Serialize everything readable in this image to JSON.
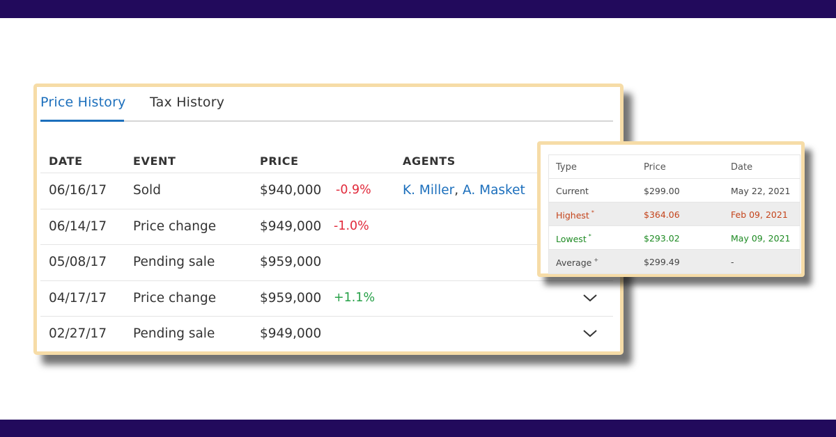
{
  "price_history": {
    "tabs": [
      {
        "label": "Price History",
        "active": true
      },
      {
        "label": "Tax History",
        "active": false
      }
    ],
    "columns": [
      "DATE",
      "EVENT",
      "PRICE",
      "AGENTS"
    ],
    "rows": [
      {
        "date": "06/16/17",
        "event": "Sold",
        "price": "$940,000",
        "change": "-0.9%",
        "agents": [
          "K. Miller",
          "A. Masket"
        ],
        "agent_separator": ", "
      },
      {
        "date": "06/14/17",
        "event": "Price change",
        "price": "$949,000",
        "change": "-1.0%"
      },
      {
        "date": "05/08/17",
        "event": "Pending sale",
        "price": "$959,000",
        "change": ""
      },
      {
        "date": "04/17/17",
        "event": "Price change",
        "price": "$959,000",
        "change": "+1.1%"
      },
      {
        "date": "02/27/17",
        "event": "Pending sale",
        "price": "$949,000",
        "change": ""
      }
    ]
  },
  "price_stats": {
    "columns": [
      "Type",
      "Price",
      "Date"
    ],
    "rows": [
      {
        "type": "Current",
        "marker": "",
        "price": "$299.00",
        "date": "May 22, 2021"
      },
      {
        "type": "Highest",
        "marker": "*",
        "price": "$364.06",
        "date": "Feb 09, 2021"
      },
      {
        "type": "Lowest",
        "marker": "*",
        "price": "$293.02",
        "date": "May 09, 2021"
      },
      {
        "type": "Average",
        "marker": "+",
        "price": "$299.49",
        "date": "-"
      }
    ]
  },
  "colors": {
    "banner": "#220a5c",
    "card_border": "#f6dca7",
    "link_blue": "#1c6fbc",
    "negative": "#e1293a",
    "positive": "#27a148",
    "highest": "#c4441b",
    "lowest": "#1d8a22"
  },
  "icons": {
    "row_expand": "chevron-down-icon"
  }
}
